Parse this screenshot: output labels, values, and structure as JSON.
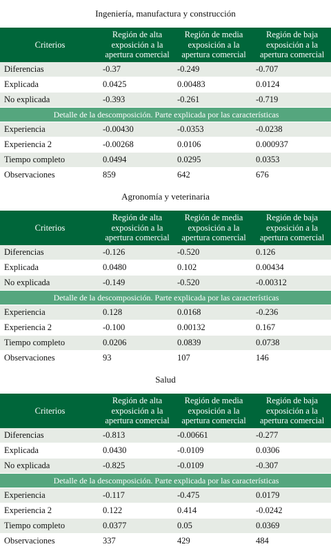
{
  "header_labels": {
    "criterios": "Criterios",
    "alta": "Región de alta exposición a la apertura comercial",
    "media": "Región de media exposición a la apertura comercial",
    "baja": "Región de baja exposición a la apertura comercial"
  },
  "detail_label": "Detalle de la descomposición. Parte explicada por las características",
  "sections": [
    {
      "title": "Ingeniería, manufactura y construcción",
      "top_rows": [
        {
          "label": "Diferencias",
          "alta": "-0.37",
          "media": "-0.249",
          "baja": "-0.707"
        },
        {
          "label": "Explicada",
          "alta": "0.0425",
          "media": "0.00483",
          "baja": "0.0124"
        },
        {
          "label": "No explicada",
          "alta": "-0.393",
          "media": "-0.261",
          "baja": "-0.719"
        }
      ],
      "detail_rows": [
        {
          "label": "Experiencia",
          "alta": "-0.00430",
          "media": "-0.0353",
          "baja": "-0.0238"
        },
        {
          "label": "Experiencia 2",
          "alta": "-0.00268",
          "media": "0.0106",
          "baja": "0.000937"
        },
        {
          "label": "Tiempo completo",
          "alta": "0.0494",
          "media": "0.0295",
          "baja": "0.0353"
        },
        {
          "label": "Observaciones",
          "alta": "859",
          "media": "642",
          "baja": "676"
        }
      ]
    },
    {
      "title": "Agronomía y veterinaria",
      "top_rows": [
        {
          "label": "Diferencias",
          "alta": "-0.126",
          "media": "-0.520",
          "baja": "0.126"
        },
        {
          "label": "Explicada",
          "alta": "0.0480",
          "media": "0.102",
          "baja": "0.00434"
        },
        {
          "label": "No explicada",
          "alta": "-0.149",
          "media": "-0.520",
          "baja": "-0.00312"
        }
      ],
      "detail_rows": [
        {
          "label": "Experiencia",
          "alta": "0.128",
          "media": "0.0168",
          "baja": "-0.236"
        },
        {
          "label": "Experiencia 2",
          "alta": "-0.100",
          "media": "0.00132",
          "baja": "0.167"
        },
        {
          "label": "Tiempo completo",
          "alta": "0.0206",
          "media": "0.0839",
          "baja": "0.0738"
        },
        {
          "label": "Observaciones",
          "alta": "93",
          "media": "107",
          "baja": "146"
        }
      ]
    },
    {
      "title": "Salud",
      "top_rows": [
        {
          "label": "Diferencias",
          "alta": "-0.813",
          "media": "-0.00661",
          "baja": "-0.277"
        },
        {
          "label": "Explicada",
          "alta": "0.0430",
          "media": "-0.0109",
          "baja": "0.0306"
        },
        {
          "label": "No explicada",
          "alta": "-0.825",
          "media": "-0.0109",
          "baja": "-0.307"
        }
      ],
      "detail_rows": [
        {
          "label": "Experiencia",
          "alta": "-0.117",
          "media": "-0.475",
          "baja": "0.0179"
        },
        {
          "label": "Experiencia 2",
          "alta": "0.122",
          "media": "0.414",
          "baja": "-0.0242"
        },
        {
          "label": "Tiempo completo",
          "alta": "0.0377",
          "media": "0.05",
          "baja": "0.0369"
        },
        {
          "label": "Observaciones",
          "alta": "337",
          "media": "429",
          "baja": "484"
        }
      ]
    }
  ]
}
